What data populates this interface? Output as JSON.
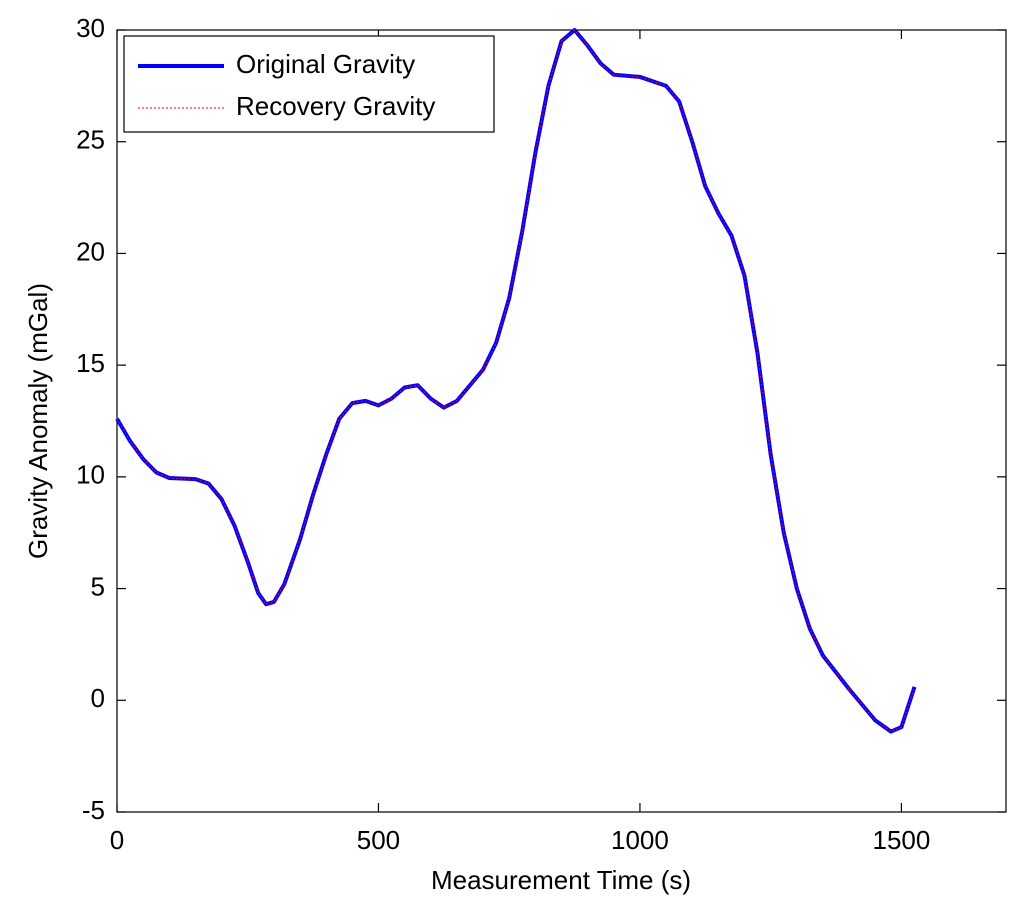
{
  "chart_data": {
    "type": "line",
    "xlabel": "Measurement Time (s)",
    "ylabel": "Gravity Anomaly (mGal)",
    "x": [
      0,
      25,
      50,
      75,
      100,
      150,
      175,
      200,
      225,
      250,
      270,
      285,
      300,
      320,
      350,
      375,
      400,
      425,
      450,
      475,
      500,
      525,
      550,
      575,
      600,
      625,
      650,
      700,
      725,
      750,
      775,
      800,
      825,
      850,
      875,
      900,
      925,
      950,
      1000,
      1050,
      1075,
      1100,
      1125,
      1150,
      1175,
      1200,
      1225,
      1250,
      1275,
      1300,
      1325,
      1350,
      1400,
      1450,
      1480,
      1500,
      1525
    ],
    "series": [
      {
        "name": "Original Gravity",
        "color": "#0000ff",
        "values": [
          12.6,
          11.6,
          10.8,
          10.2,
          9.95,
          9.9,
          9.7,
          9.0,
          7.8,
          6.2,
          4.8,
          4.3,
          4.4,
          5.2,
          7.2,
          9.2,
          11.0,
          12.6,
          13.3,
          13.4,
          13.2,
          13.5,
          14.0,
          14.1,
          13.5,
          13.1,
          13.4,
          14.8,
          16.0,
          18.0,
          21.0,
          24.5,
          27.5,
          29.5,
          30.0,
          29.3,
          28.5,
          28.0,
          27.9,
          27.5,
          26.8,
          25.0,
          23.0,
          21.8,
          20.8,
          19.0,
          15.5,
          11.0,
          7.5,
          5.0,
          3.2,
          2.0,
          0.5,
          -0.9,
          -1.4,
          -1.2,
          0.6
        ]
      },
      {
        "name": "Recovery Gravity",
        "color": "#ff0000",
        "values": [
          12.6,
          11.6,
          10.8,
          10.2,
          9.95,
          9.9,
          9.7,
          9.0,
          7.8,
          6.2,
          4.8,
          4.3,
          4.4,
          5.2,
          7.2,
          9.2,
          11.0,
          12.6,
          13.3,
          13.4,
          13.2,
          13.5,
          14.0,
          14.1,
          13.5,
          13.1,
          13.4,
          14.8,
          16.0,
          18.0,
          21.0,
          24.5,
          27.5,
          29.5,
          30.0,
          29.3,
          28.5,
          28.0,
          27.9,
          27.5,
          26.8,
          25.0,
          23.0,
          21.8,
          20.8,
          19.0,
          15.5,
          11.0,
          7.5,
          5.0,
          3.2,
          2.0,
          0.5,
          -0.9,
          -1.4,
          -1.2,
          0.6
        ]
      }
    ],
    "xlim": [
      0,
      1700
    ],
    "xticks": [
      0,
      500,
      1000,
      1500
    ],
    "ylim": [
      -5,
      30
    ],
    "yticks": [
      -5,
      0,
      5,
      10,
      15,
      20,
      25,
      30
    ],
    "grid": false,
    "legend": "northwest"
  }
}
